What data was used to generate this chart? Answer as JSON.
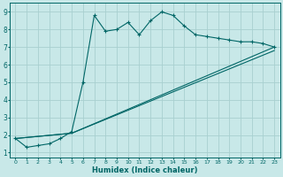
{
  "xlabel": "Humidex (Indice chaleur)",
  "bg_color": "#c8e8e8",
  "grid_color": "#a8d0d0",
  "line_color": "#006666",
  "xlim_min": -0.5,
  "xlim_max": 23.5,
  "ylim_min": 0.7,
  "ylim_max": 9.5,
  "yticks": [
    1,
    2,
    3,
    4,
    5,
    6,
    7,
    8,
    9
  ],
  "xticks": [
    0,
    1,
    2,
    3,
    4,
    5,
    6,
    7,
    8,
    9,
    10,
    11,
    12,
    13,
    14,
    15,
    16,
    17,
    18,
    19,
    20,
    21,
    22,
    23
  ],
  "series1_x": [
    0,
    1,
    2,
    3,
    4,
    5,
    6,
    7,
    8,
    9,
    10,
    11,
    12,
    13,
    14,
    15,
    16,
    17,
    18,
    19,
    20,
    21,
    22,
    23
  ],
  "series1_y": [
    1.8,
    1.3,
    1.4,
    1.5,
    1.8,
    2.2,
    5.0,
    8.8,
    7.9,
    8.0,
    8.4,
    7.7,
    8.5,
    9.0,
    8.8,
    8.2,
    7.7,
    7.6,
    7.5,
    7.4,
    7.3,
    7.3,
    7.2,
    7.0
  ],
  "series2_x": [
    0,
    5,
    23
  ],
  "series2_y": [
    1.8,
    2.1,
    7.0
  ],
  "series3_x": [
    0,
    5,
    23
  ],
  "series3_y": [
    1.8,
    2.1,
    6.8
  ]
}
